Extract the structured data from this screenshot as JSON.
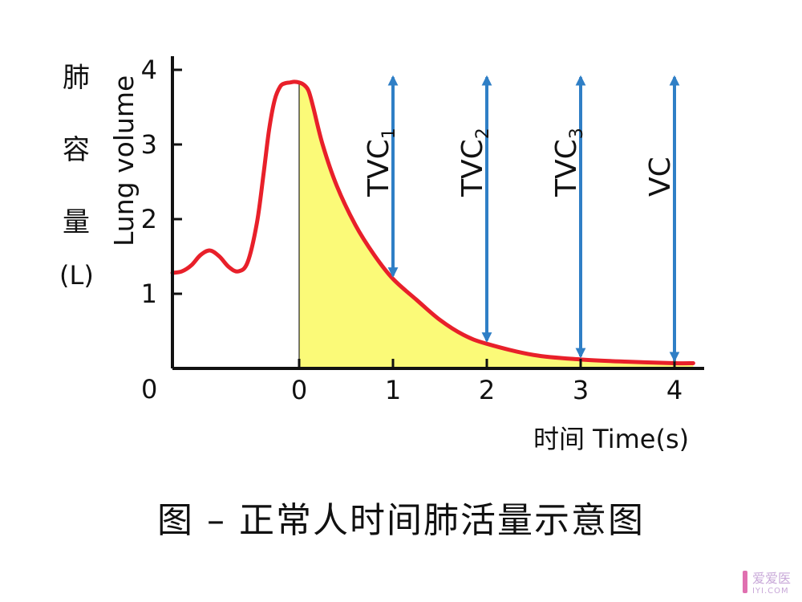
{
  "chart_data": {
    "type": "line",
    "ylabel_cn": [
      "肺",
      "容",
      "量"
    ],
    "ylabel_unit": "(L)",
    "ylabel_en": "Lung volume",
    "xlabel": "时间 Time(s)",
    "origin_label": "0",
    "x_ticks": [
      "0",
      "1",
      "2",
      "3",
      "4"
    ],
    "y_ticks": [
      "1",
      "2",
      "3",
      "4"
    ],
    "xlim": [
      -1.35,
      4.35
    ],
    "ylim": [
      0,
      4.2
    ],
    "series": [
      {
        "x": [
          -1.35,
          -1.25,
          -1.15,
          -1.05,
          -0.95,
          -0.85,
          -0.75,
          -0.65,
          -0.55,
          -0.45,
          -0.38,
          -0.32,
          -0.26,
          -0.2,
          -0.15,
          -0.1,
          -0.05,
          0.0,
          0.05,
          0.1,
          0.15,
          0.25,
          0.4,
          0.6,
          0.8,
          1.0,
          1.25,
          1.5,
          1.75,
          2.0,
          2.5,
          3.0,
          3.5,
          4.0,
          4.2
        ],
        "y": [
          1.28,
          1.3,
          1.38,
          1.52,
          1.58,
          1.5,
          1.36,
          1.3,
          1.42,
          1.95,
          2.6,
          3.2,
          3.6,
          3.78,
          3.82,
          3.83,
          3.84,
          3.83,
          3.8,
          3.72,
          3.5,
          3.0,
          2.45,
          1.92,
          1.52,
          1.2,
          0.92,
          0.65,
          0.45,
          0.33,
          0.18,
          0.12,
          0.09,
          0.07,
          0.07
        ],
        "color": "#e8202a"
      }
    ],
    "fill_from_x": 0,
    "fill_color": "#fbfa78",
    "markers": [
      {
        "label": "TVC",
        "sub": "1",
        "x": 1,
        "y_top": 3.9,
        "y_bottom": 1.2
      },
      {
        "label": "TVC",
        "sub": "2",
        "x": 2,
        "y_top": 3.9,
        "y_bottom": 0.33
      },
      {
        "label": "TVC",
        "sub": "3",
        "x": 3,
        "y_top": 3.9,
        "y_bottom": 0.12
      },
      {
        "label": "VC",
        "sub": "",
        "x": 4,
        "y_top": 3.9,
        "y_bottom": 0.07
      }
    ],
    "marker_color": "#2f7fc6",
    "grid": false
  },
  "caption": "图 – 正常人时间肺活量示意图",
  "watermark": {
    "brand": "爱爱医",
    "domain": "IYI.COM"
  }
}
